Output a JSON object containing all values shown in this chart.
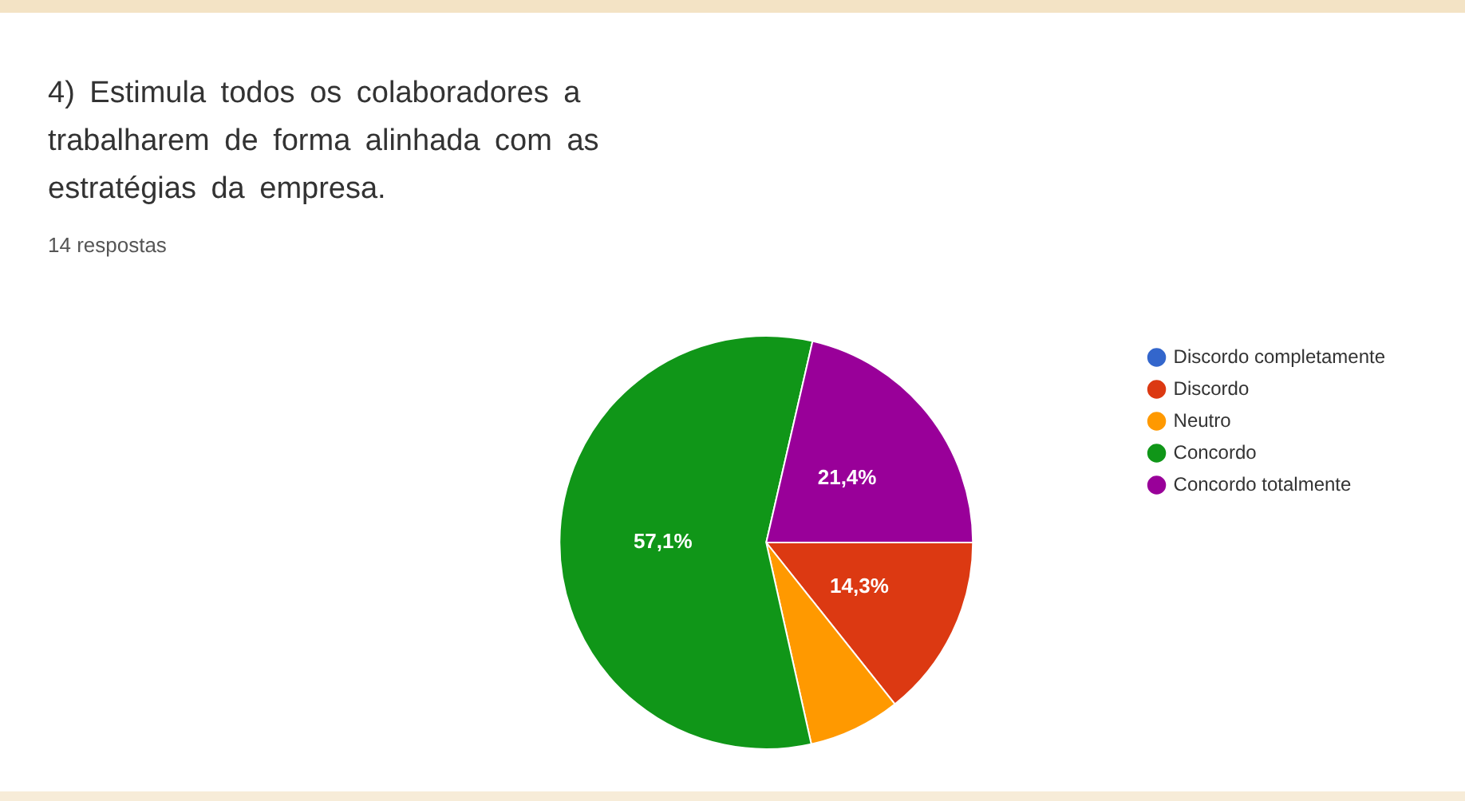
{
  "chart_data": {
    "type": "pie",
    "title": "4) Estimula todos os colaboradores a trabalharem de forma alinhada com as estratégias da empresa.",
    "subtitle": "14 respostas",
    "categories": [
      "Discordo completamente",
      "Discordo",
      "Neutro",
      "Concordo",
      "Concordo totalmente"
    ],
    "values": [
      0,
      14.3,
      7.2,
      57.1,
      21.4
    ],
    "colors": [
      "#3366cc",
      "#dc3912",
      "#ff9900",
      "#109618",
      "#990099"
    ],
    "value_labels": [
      null,
      "14,3%",
      null,
      "57,1%",
      "21,4%"
    ],
    "legend": "right"
  }
}
